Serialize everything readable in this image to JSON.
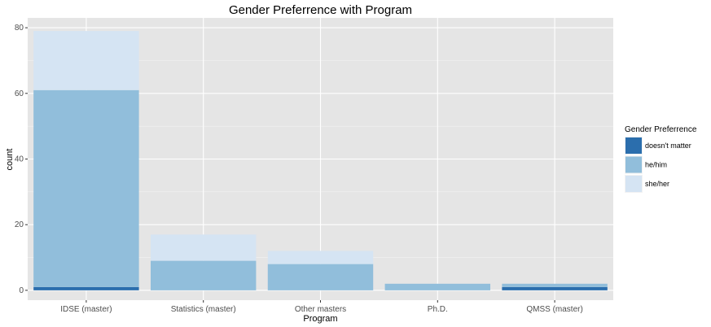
{
  "chart_data": {
    "type": "bar",
    "stacked": true,
    "title": "Gender Preferrence with Program",
    "xlabel": "Program",
    "ylabel": "count",
    "ylim": [
      -3,
      83
    ],
    "yticks": [
      0,
      20,
      40,
      60,
      80
    ],
    "grid": true,
    "legend": {
      "title": "Gender Preferrence",
      "placement": "right"
    },
    "categories": [
      "IDSE (master)",
      "Statistics (master)",
      "Other masters",
      "Ph.D.",
      "QMSS (master)"
    ],
    "series": [
      {
        "name": "doesn't matter",
        "color": "#2b6ead",
        "values": [
          1,
          0,
          0,
          0,
          1
        ]
      },
      {
        "name": "he/him",
        "color": "#91bedb",
        "values": [
          60,
          9,
          8,
          2,
          1
        ]
      },
      {
        "name": "she/her",
        "color": "#d5e4f3",
        "values": [
          18,
          8,
          4,
          0,
          0
        ]
      }
    ]
  }
}
